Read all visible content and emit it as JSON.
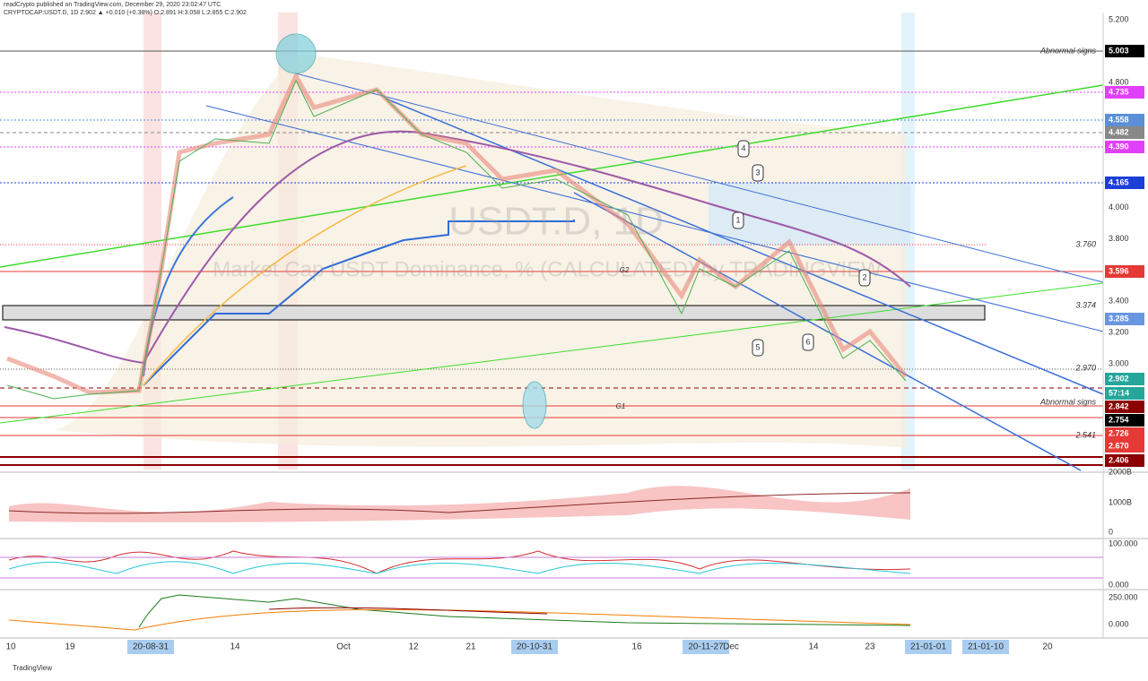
{
  "header": {
    "publisher": "readCrypto published on TradingView.com, December 29, 2020 23:02:47 UTC",
    "symbol": "CRYPTOCAP:USDT.D, 1D 2.902 ▲ +0.010 (+0.38%) O:2.891 H:3.058 L:2.855 C:2.902"
  },
  "watermark": {
    "symbol": "USDT.D, 1D",
    "description": "Market Cap USDT Dominance, % (CALCULATED) by TRADINGVIEW"
  },
  "price_axis": {
    "labels": [
      "5.200",
      "4.800",
      "4.000",
      "3.800",
      "3.400",
      "3.200",
      "3.000"
    ],
    "tags": [
      {
        "text": "5.003",
        "color": "#000000"
      },
      {
        "text": "4.735",
        "color": "#e040fb"
      },
      {
        "text": "4.558",
        "color": "#5b8fd6"
      },
      {
        "text": "4.482",
        "color": "#888888"
      },
      {
        "text": "4.390",
        "color": "#e040fb"
      },
      {
        "text": "4.165",
        "color": "#1e3fd6"
      },
      {
        "text": "3.596",
        "color": "#e53935"
      },
      {
        "text": "3.285",
        "color": "#6a96e0"
      },
      {
        "text": "2.902",
        "color": "#26a69a"
      },
      {
        "text": "57:14",
        "color": "#26a69a"
      },
      {
        "text": "2.842",
        "color": "#8b0000"
      },
      {
        "text": "2.754",
        "color": "#000000"
      },
      {
        "text": "2.726",
        "color": "#e53935"
      },
      {
        "text": "2.670",
        "color": "#e53935"
      },
      {
        "text": "2.406",
        "color": "#8b0000"
      }
    ]
  },
  "annotations": {
    "level_labels": [
      "Abnormal signs",
      "3.760",
      "3.374",
      "2.970",
      "Abnormal signs",
      "2.541"
    ],
    "groups": [
      "G2",
      "G1"
    ],
    "callouts": [
      "1",
      "2",
      "3",
      "4",
      "5",
      "6"
    ]
  },
  "panes": [
    {
      "labels": [
        "2000B",
        "1000B",
        "0"
      ]
    },
    {
      "labels": [
        "100.000",
        "0.000"
      ]
    },
    {
      "labels": [
        "250.000",
        "0.000"
      ]
    }
  ],
  "date_axis": {
    "labels": [
      "10",
      "19",
      "20-08-31",
      "14",
      "Oct",
      "12",
      "21",
      "20-10-31",
      "16",
      "20-11-27",
      "Dec",
      "14",
      "23",
      "21-01-01",
      "21-01-10",
      "20"
    ]
  },
  "footer": {
    "brand": "TradingView"
  }
}
